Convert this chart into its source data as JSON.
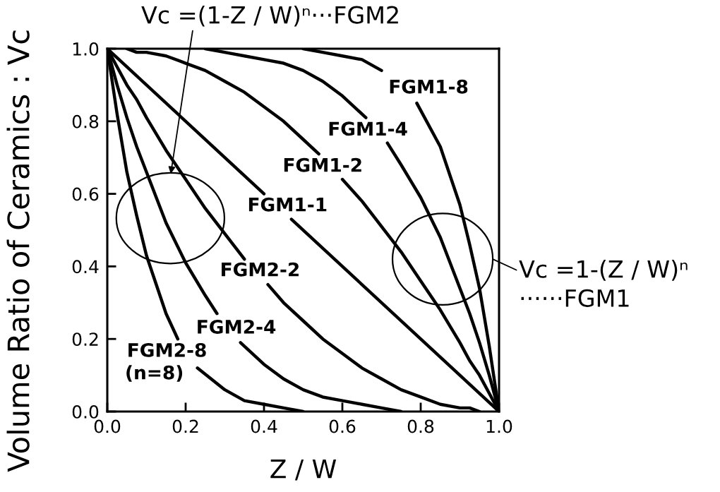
{
  "chart_data": {
    "type": "line",
    "xlabel": "Z / W",
    "ylabel": "Volume Ratio of Ceramics : Vc",
    "annotations": [
      "Vc =(1-Z / W)ⁿ···FGM2",
      "Vc =1-(Z / W)ⁿ\n······FGM1",
      "(n=8)"
    ],
    "series": [
      {
        "name": "FGM1-8",
        "color": "#000000",
        "x": [
          0.5,
          0.55,
          0.6,
          0.65,
          0.7,
          0.75,
          0.79,
          0.85,
          0.9,
          0.925,
          0.95,
          0.975,
          1
        ],
        "values": [
          1,
          0.99,
          0.98,
          0.97,
          0.94,
          null,
          0.85,
          0.73,
          0.57,
          0.46,
          0.34,
          0.18,
          0
        ]
      },
      {
        "name": "FGM1-4",
        "color": "#000000",
        "x": [
          0.25,
          0.3,
          0.35,
          0.4,
          0.45,
          0.5,
          0.55,
          0.6,
          0.66,
          0.69,
          0.715,
          0.75,
          0.8,
          0.85,
          0.9,
          0.925,
          0.95,
          0.975,
          1
        ],
        "values": [
          1,
          0.99,
          0.98,
          0.97,
          0.96,
          0.94,
          0.91,
          0.87,
          0.81,
          null,
          0.74,
          0.68,
          0.59,
          0.48,
          0.34,
          0.27,
          0.19,
          0.1,
          0
        ]
      },
      {
        "name": "FGM1-2",
        "color": "#000000",
        "x": [
          0.05,
          0.075,
          0.1,
          0.15,
          0.2,
          0.25,
          0.3,
          0.35,
          0.4,
          0.45,
          0.5,
          0.54,
          0.57,
          0.6,
          0.65,
          0.7,
          0.75,
          0.8,
          0.85,
          0.9,
          0.925,
          0.95,
          0.975,
          1
        ],
        "values": [
          1,
          0.99,
          0.99,
          0.98,
          0.96,
          0.94,
          0.91,
          0.88,
          0.84,
          0.8,
          0.75,
          0.71,
          null,
          0.64,
          0.58,
          0.51,
          0.44,
          0.36,
          0.28,
          0.19,
          0.14,
          0.1,
          0.05,
          0
        ]
      },
      {
        "name": "FGM1-1",
        "color": "#000000",
        "x": [
          0,
          0.4,
          0.435,
          0.47,
          1
        ],
        "values": [
          1,
          0.6,
          null,
          0.53,
          0
        ]
      },
      {
        "name": "FGM2-2",
        "color": "#000000",
        "x": [
          0,
          0.025,
          0.05,
          0.075,
          0.1,
          0.15,
          0.2,
          0.25,
          0.3,
          0.35,
          0.38,
          0.41,
          0.45,
          0.5,
          0.55,
          0.6,
          0.65,
          0.7,
          0.75,
          0.8,
          0.85,
          0.9,
          0.925,
          0.95
        ],
        "values": [
          1,
          0.95,
          0.9,
          0.86,
          0.81,
          0.72,
          0.64,
          0.56,
          0.49,
          0.42,
          null,
          0.35,
          0.3,
          0.25,
          0.2,
          0.16,
          0.12,
          0.09,
          0.06,
          0.04,
          0.02,
          0.01,
          0.01,
          0
        ]
      },
      {
        "name": "FGM2-4",
        "color": "#000000",
        "x": [
          0,
          0.025,
          0.05,
          0.075,
          0.1,
          0.15,
          0.2,
          0.25,
          0.28,
          0.31,
          0.34,
          0.4,
          0.45,
          0.5,
          0.55,
          0.6,
          0.65,
          0.7,
          0.75
        ],
        "values": [
          1,
          0.9,
          0.81,
          0.73,
          0.66,
          0.52,
          0.41,
          0.32,
          0.27,
          null,
          0.19,
          0.13,
          0.09,
          0.06,
          0.04,
          0.03,
          0.02,
          0.01,
          0
        ]
      },
      {
        "name": "FGM2-8",
        "color": "#000000",
        "x": [
          0,
          0.025,
          0.05,
          0.075,
          0.1,
          0.15,
          0.18,
          0.2,
          0.23,
          0.3,
          0.35,
          0.4,
          0.45,
          0.5
        ],
        "values": [
          1,
          0.82,
          0.66,
          0.54,
          0.43,
          0.27,
          0.2,
          null,
          0.12,
          0.06,
          0.03,
          0.02,
          0.01,
          0
        ]
      }
    ],
    "xlim": [
      0,
      1
    ],
    "ylim": [
      0,
      1
    ],
    "xticks": [
      {
        "value": 0,
        "label": "0.0"
      },
      0.2,
      0.4,
      0.6,
      0.8,
      {
        "value": 1,
        "label": "1.0"
      }
    ],
    "yticks": [
      {
        "value": 0,
        "label": "0.0"
      },
      0.2,
      0.4,
      0.6,
      0.8,
      {
        "value": 1,
        "label": "1.0"
      }
    ],
    "grid": false,
    "line_style": "solid"
  }
}
